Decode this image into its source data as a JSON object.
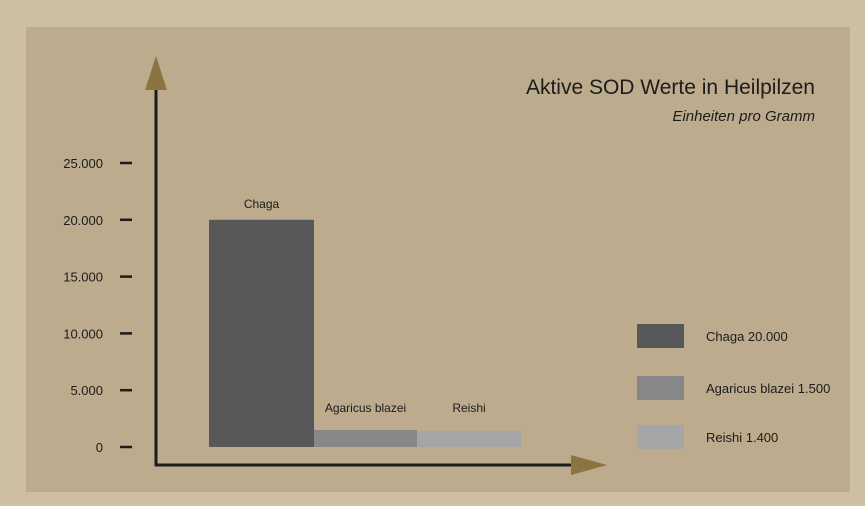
{
  "chart_data": {
    "type": "bar",
    "title": "Aktive SOD Werte in Heilpilzen",
    "subtitle": "Einheiten pro Gramm",
    "categories": [
      "Chaga",
      "Agaricus blazei",
      "Reishi"
    ],
    "values": [
      20000,
      1500,
      1400
    ],
    "colors": [
      "#58585a",
      "#87878a",
      "#a5a5a8"
    ],
    "yticks": [
      "0",
      "5.000",
      "10.000",
      "15.000",
      "20.000",
      "25.000"
    ],
    "ytick_values": [
      0,
      5000,
      10000,
      15000,
      20000,
      25000
    ],
    "ylim": [
      0,
      25000
    ],
    "legend": [
      {
        "label": "Chaga 20.000",
        "color": "#58585a"
      },
      {
        "label": "Agaricus blazei 1.500",
        "color": "#87878a"
      },
      {
        "label": "Reishi 1.400",
        "color": "#a5a5a8"
      }
    ],
    "legend_position": "right",
    "grid": false,
    "axis_color": "#1c1c1c",
    "arrow_color": "#8b7440"
  }
}
